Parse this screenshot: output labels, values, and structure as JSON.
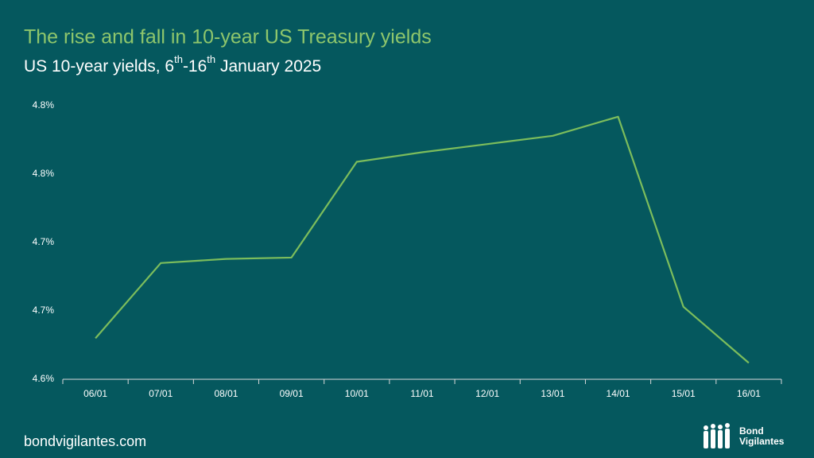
{
  "chart_data": {
    "type": "line",
    "title": "The rise and fall in 10-year US Treasury yields",
    "subtitle": [
      "US 10-year yields, 6",
      "th",
      "-16",
      "th",
      " January 2025"
    ],
    "categories": [
      "06/01",
      "07/01",
      "08/01",
      "09/01",
      "10/01",
      "11/01",
      "12/01",
      "13/01",
      "14/01",
      "15/01",
      "16/01"
    ],
    "series": [
      {
        "name": "US 10-year yield",
        "color": "#7cbd5c",
        "values": [
          4.63,
          4.685,
          4.688,
          4.689,
          4.759,
          4.766,
          4.772,
          4.778,
          4.792,
          4.653,
          4.612
        ]
      }
    ],
    "ylim": [
      4.6,
      4.8
    ],
    "yticks": [
      {
        "value": 4.6,
        "label": "4.6%"
      },
      {
        "value": 4.65,
        "label": "4.7%"
      },
      {
        "value": 4.7,
        "label": "4.7%"
      },
      {
        "value": 4.75,
        "label": "4.8%"
      },
      {
        "value": 4.8,
        "label": "4.8%"
      }
    ],
    "grid": false
  },
  "footer": {
    "site": "bondvigilantes.com",
    "logo": [
      "Bond",
      "Vigilantes"
    ]
  }
}
